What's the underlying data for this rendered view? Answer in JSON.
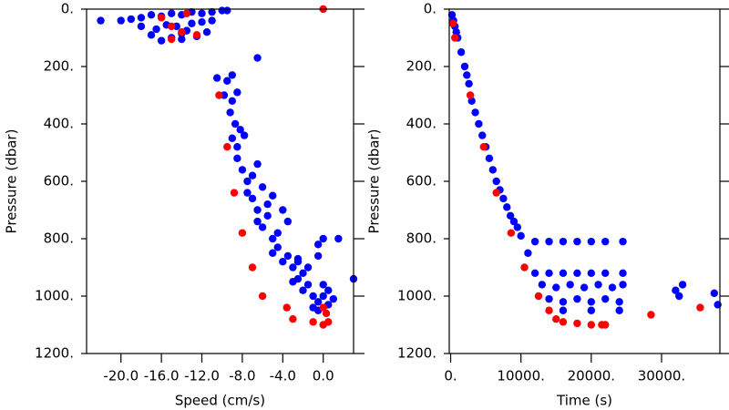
{
  "chart_data": [
    {
      "type": "scatter",
      "xlabel": "Speed (cm/s)",
      "ylabel": "Pressure (dbar)",
      "xlim": [
        -23.4,
        3
      ],
      "ylim": [
        1200,
        0
      ],
      "xticks": [
        {
          "value": -20,
          "label": "-20.0"
        },
        {
          "value": -16,
          "label": "-16.0"
        },
        {
          "value": -12,
          "label": "-12.0"
        },
        {
          "value": -8,
          "label": "-8.0"
        },
        {
          "value": -4,
          "label": "-4.0"
        },
        {
          "value": 0,
          "label": "0.0"
        }
      ],
      "yticks": [
        {
          "value": 0,
          "label": "0."
        },
        {
          "value": 200,
          "label": "200."
        },
        {
          "value": 400,
          "label": "400."
        },
        {
          "value": 600,
          "label": "600."
        },
        {
          "value": 800,
          "label": "800."
        },
        {
          "value": 1000,
          "label": "1000."
        },
        {
          "value": 1200,
          "label": "1200."
        }
      ],
      "series": [
        {
          "color": "#0000ff",
          "x": [
            -22,
            -20,
            -19,
            -18,
            -17,
            -16,
            -15,
            -14,
            -13,
            -12,
            -11,
            -10,
            -9.5,
            -18,
            -16.5,
            -15.5,
            -14.5,
            -13,
            -12,
            -11,
            -17,
            -15,
            -14,
            -12.5,
            -11.5,
            -16,
            -14,
            -13.5,
            -10.5,
            -9.5,
            -9,
            -6.5,
            -9.8,
            -9,
            -8.5,
            -9.2,
            -8.7,
            -8.2,
            -9,
            -8.5,
            -7.8,
            -8.5,
            -8,
            -7.5,
            -7,
            -6.5,
            -7.5,
            -7,
            -6.5,
            -6,
            -5.5,
            -5,
            -6.5,
            -6,
            -5.5,
            -5,
            -4.5,
            -4,
            -3.5,
            -5,
            -4.5,
            -4,
            -3.5,
            -3,
            -2.5,
            -2,
            -3,
            -2.5,
            -2,
            -1.5,
            -1,
            -0.5,
            0,
            0.5,
            1,
            -1,
            -0.5,
            0,
            -0.5,
            0,
            1.5,
            -2.5,
            -1.5,
            -0.5,
            0.5,
            3
          ],
          "values": [
            40,
            40,
            35,
            30,
            20,
            25,
            15,
            20,
            10,
            15,
            10,
            5,
            5,
            60,
            70,
            55,
            60,
            50,
            45,
            40,
            90,
            100,
            85,
            95,
            80,
            110,
            105,
            75,
            240,
            250,
            230,
            170,
            300,
            320,
            290,
            360,
            400,
            420,
            450,
            480,
            440,
            520,
            560,
            600,
            580,
            540,
            640,
            660,
            700,
            620,
            680,
            650,
            740,
            760,
            720,
            800,
            780,
            700,
            740,
            850,
            830,
            880,
            860,
            900,
            870,
            920,
            950,
            940,
            980,
            960,
            1000,
            1020,
            1000,
            980,
            1010,
            1040,
            1050,
            960,
            820,
            800,
            800,
            880,
            900,
            860,
            1030,
            940
          ]
        },
        {
          "color": "#ff0000",
          "x": [
            -16,
            -15,
            -13.5,
            -12.5,
            -14,
            -15,
            0,
            -10.3,
            -9.5,
            -8.8,
            -8,
            -7,
            -6,
            -3.6,
            -3,
            -1,
            0,
            0.5,
            0.3,
            0
          ],
          "values": [
            30,
            60,
            15,
            90,
            80,
            105,
            0,
            300,
            480,
            640,
            780,
            900,
            1000,
            1040,
            1080,
            1090,
            1100,
            1090,
            1060,
            1040
          ]
        }
      ]
    },
    {
      "type": "scatter",
      "xlabel": "Time (s)",
      "ylabel": "Pressure (dbar)",
      "xlim": [
        -200,
        38300
      ],
      "ylim": [
        1200,
        0
      ],
      "xticks": [
        {
          "value": 0,
          "label": "0."
        },
        {
          "value": 10000,
          "label": "10000."
        },
        {
          "value": 20000,
          "label": "20000."
        },
        {
          "value": 30000,
          "label": "30000."
        }
      ],
      "yticks": [
        {
          "value": 0,
          "label": "0."
        },
        {
          "value": 200,
          "label": "200."
        },
        {
          "value": 400,
          "label": "400."
        },
        {
          "value": 600,
          "label": "600."
        },
        {
          "value": 800,
          "label": "800."
        },
        {
          "value": 1000,
          "label": "1000."
        },
        {
          "value": 1200,
          "label": "1200."
        }
      ],
      "series": [
        {
          "color": "#0000ff",
          "x": [
            200,
            400,
            600,
            800,
            1000,
            1500,
            2000,
            2300,
            2600,
            3000,
            3500,
            4000,
            4500,
            5000,
            5500,
            6000,
            6500,
            7000,
            7500,
            8000,
            8500,
            9000,
            9500,
            10000,
            11000,
            12000,
            14000,
            16000,
            18000,
            20000,
            22000,
            24500,
            12000,
            14000,
            16000,
            18000,
            20000,
            22000,
            24500,
            13000,
            15000,
            17000,
            19000,
            21000,
            23000,
            24500,
            14000,
            16000,
            18000,
            20000,
            22000,
            24000,
            16000,
            20000,
            24000,
            32000,
            32500,
            33000,
            37500,
            38000
          ],
          "values": [
            20,
            40,
            60,
            80,
            100,
            150,
            200,
            230,
            260,
            320,
            360,
            400,
            440,
            480,
            520,
            560,
            600,
            630,
            660,
            690,
            720,
            740,
            760,
            790,
            850,
            810,
            810,
            810,
            810,
            810,
            810,
            810,
            920,
            920,
            920,
            920,
            920,
            920,
            920,
            960,
            970,
            960,
            970,
            960,
            970,
            960,
            1010,
            1020,
            1010,
            1020,
            1010,
            1020,
            1050,
            1050,
            1050,
            980,
            1000,
            960,
            990,
            1030
          ]
        },
        {
          "color": "#ff0000",
          "x": [
            300,
            600,
            2800,
            4700,
            6500,
            8600,
            10500,
            12500,
            14000,
            15000,
            16000,
            18000,
            20000,
            21500,
            22000,
            28500,
            35500
          ],
          "values": [
            50,
            100,
            300,
            480,
            640,
            780,
            900,
            1000,
            1050,
            1080,
            1090,
            1095,
            1100,
            1100,
            1100,
            1065,
            1040
          ]
        }
      ]
    }
  ]
}
